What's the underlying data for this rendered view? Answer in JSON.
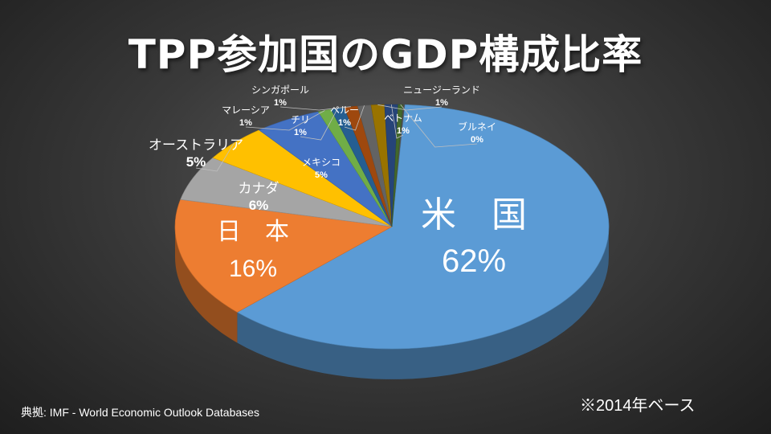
{
  "title": "TPP参加国のGDP構成比率",
  "source": "典拠: IMF - World Economic Outlook Databases",
  "note": "※2014年ベース",
  "chart_data": {
    "type": "pie",
    "title": "TPP参加国のGDP構成比率",
    "unit": "%",
    "slices": [
      {
        "name": "米　国",
        "value": 62,
        "label": "62%",
        "color": "#5b9bd5"
      },
      {
        "name": "日　本",
        "value": 16,
        "label": "16%",
        "color": "#ed7d31"
      },
      {
        "name": "カナダ",
        "value": 6,
        "label": "6%",
        "color": "#a5a5a5"
      },
      {
        "name": "オーストラリア",
        "value": 5,
        "label": "5%",
        "color": "#ffc000"
      },
      {
        "name": "メキシコ",
        "value": 5,
        "label": "5%",
        "color": "#4472c4"
      },
      {
        "name": "マレーシア",
        "value": 1,
        "label": "1%",
        "color": "#70ad47"
      },
      {
        "name": "チリ",
        "value": 1,
        "label": "1%",
        "color": "#255e91"
      },
      {
        "name": "シンガポール",
        "value": 1,
        "label": "1%",
        "color": "#9e480e"
      },
      {
        "name": "ペルー",
        "value": 1,
        "label": "1%",
        "color": "#636363"
      },
      {
        "name": "ニュージーランド",
        "value": 1,
        "label": "1%",
        "color": "#997300"
      },
      {
        "name": "ベトナム",
        "value": 1,
        "label": "1%",
        "color": "#264478"
      },
      {
        "name": "ブルネイ",
        "value": 0,
        "label": "0%",
        "color": "#43682b"
      }
    ]
  }
}
